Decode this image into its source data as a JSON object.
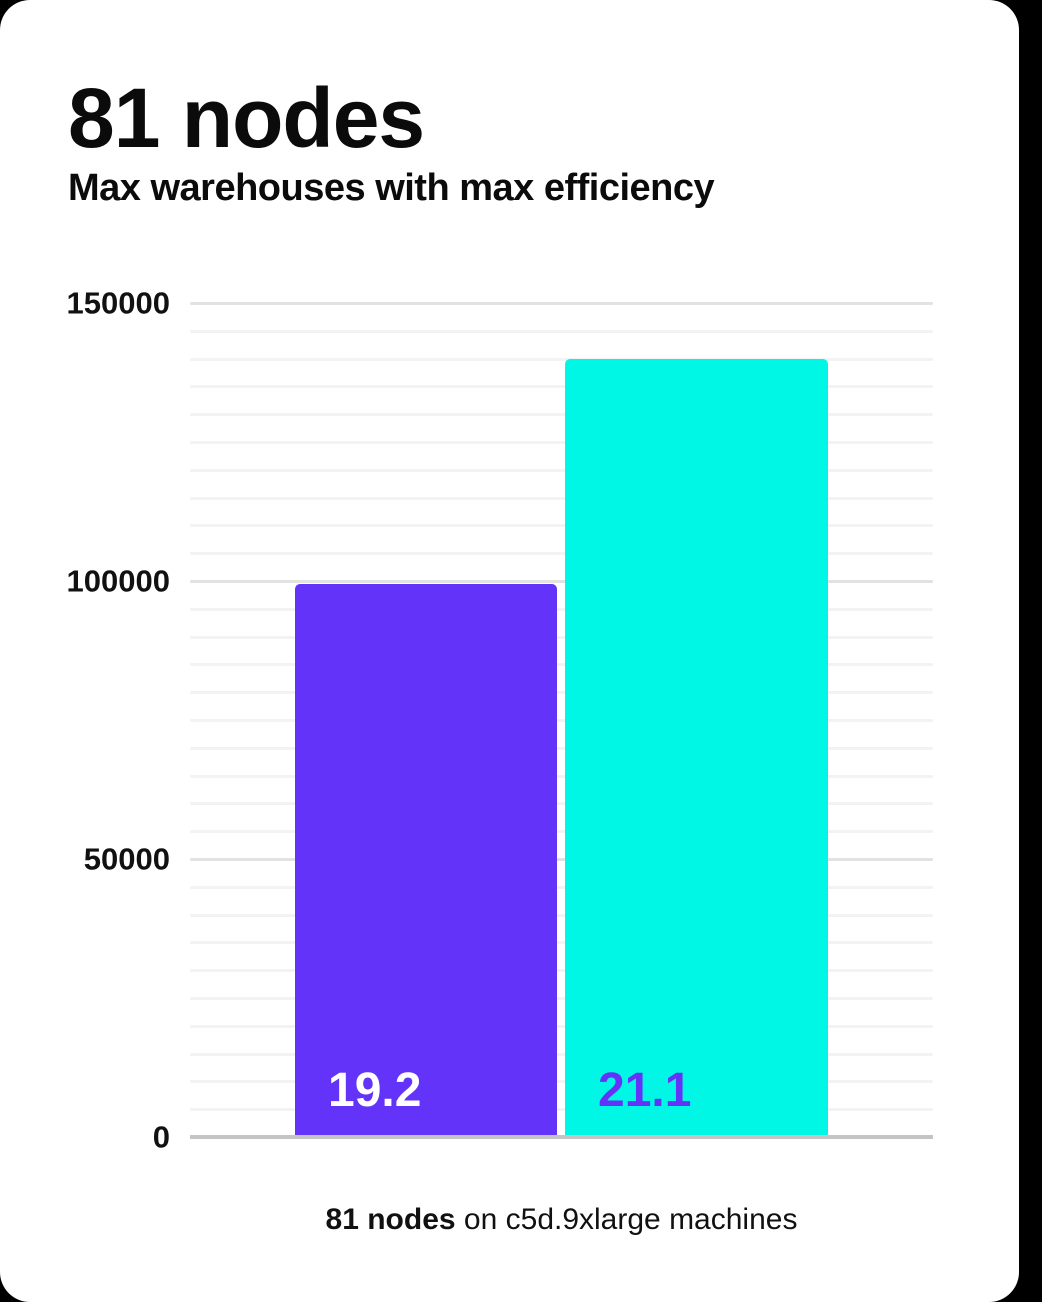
{
  "header": {
    "title": "81 nodes",
    "subtitle": "Max warehouses with max efficiency"
  },
  "chart_data": {
    "type": "bar",
    "title": "81 nodes",
    "subtitle": "Max warehouses with max efficiency",
    "series": [
      {
        "name": "bar-1",
        "value": 99400,
        "bar_label": "19.2",
        "color": "#6333fa",
        "label_color": "#ffffff"
      },
      {
        "name": "bar-2",
        "value": 140000,
        "bar_label": "21.1",
        "color": "#00f7e6",
        "label_color": "#6333fa"
      }
    ],
    "y_axis": {
      "min": 0,
      "max": 150000,
      "major_ticks": [
        0,
        50000,
        100000,
        150000
      ],
      "tick_labels": [
        "0",
        "50000",
        "100000",
        "150000"
      ],
      "minor_step": 5000
    },
    "grid": "horizontal-minor-and-major",
    "legend": "none",
    "colors": {
      "major_gridline": "#e2e2e2",
      "minor_gridline": "#f3f3f3",
      "baseline": "#c4c4c4",
      "card_background": "#ffffff",
      "page_background": "#000000",
      "text": "#0b0b0b"
    }
  },
  "caption": {
    "bold": "81 nodes",
    "rest": " on c5d.9xlarge machines"
  }
}
